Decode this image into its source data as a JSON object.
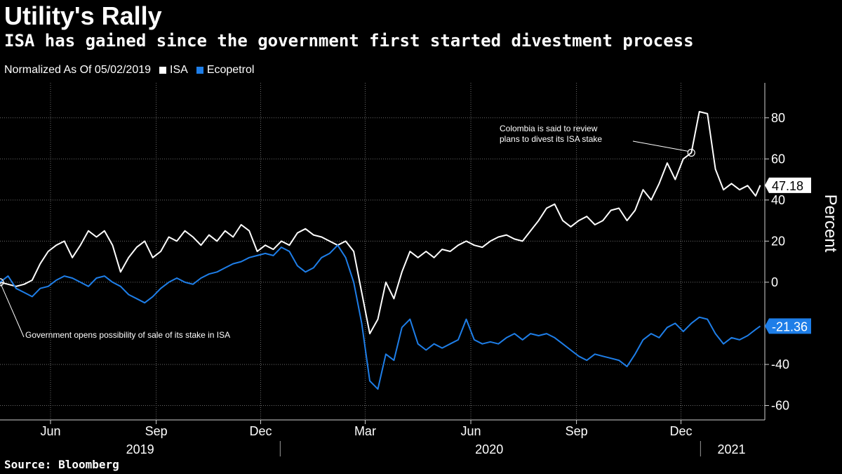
{
  "header": {
    "title": "Utility's Rally",
    "subtitle": "ISA has gained since the government first started divestment process"
  },
  "legend": {
    "note": "Normalized As Of 05/02/2019",
    "items": [
      {
        "label": "ISA",
        "color": "#ffffff"
      },
      {
        "label": "Ecopetrol",
        "color": "#1e7ee8"
      }
    ]
  },
  "footer": {
    "source": "Source: Bloomberg"
  },
  "chart_data": {
    "type": "line",
    "ylabel": "Percent",
    "ylim": [
      -67,
      97
    ],
    "yticks": [
      80,
      60,
      40,
      20,
      0,
      -40,
      -60
    ],
    "x_start": "2019-05-02",
    "x_end": "2021-02-26",
    "month_ticks": [
      {
        "label": "Jun",
        "date": "2019-06-15"
      },
      {
        "label": "Sep",
        "date": "2019-09-15"
      },
      {
        "label": "Dec",
        "date": "2019-12-15"
      },
      {
        "label": "Mar",
        "date": "2020-03-15"
      },
      {
        "label": "Jun",
        "date": "2020-06-15"
      },
      {
        "label": "Sep",
        "date": "2020-09-15"
      },
      {
        "label": "Dec",
        "date": "2020-12-15"
      }
    ],
    "year_labels": [
      {
        "label": "2019",
        "date": "2019-09-01"
      },
      {
        "label": "2020",
        "date": "2020-07-01"
      },
      {
        "label": "2021",
        "date": "2021-01-28"
      }
    ],
    "year_dividers": [
      "2020-01-01",
      "2021-01-01"
    ],
    "series": [
      {
        "name": "ISA",
        "color": "#ffffff",
        "last_value_label": "47.18",
        "points": [
          [
            "2019-05-02",
            0
          ],
          [
            "2019-05-09",
            -1
          ],
          [
            "2019-05-16",
            -2
          ],
          [
            "2019-05-23",
            -1
          ],
          [
            "2019-05-30",
            1
          ],
          [
            "2019-06-06",
            9
          ],
          [
            "2019-06-13",
            15
          ],
          [
            "2019-06-20",
            18
          ],
          [
            "2019-06-27",
            20
          ],
          [
            "2019-07-04",
            12
          ],
          [
            "2019-07-11",
            18
          ],
          [
            "2019-07-18",
            25
          ],
          [
            "2019-07-25",
            22
          ],
          [
            "2019-08-01",
            25
          ],
          [
            "2019-08-08",
            18
          ],
          [
            "2019-08-15",
            5
          ],
          [
            "2019-08-22",
            12
          ],
          [
            "2019-08-29",
            17
          ],
          [
            "2019-09-05",
            20
          ],
          [
            "2019-09-12",
            12
          ],
          [
            "2019-09-19",
            15
          ],
          [
            "2019-09-26",
            22
          ],
          [
            "2019-10-03",
            20
          ],
          [
            "2019-10-10",
            25
          ],
          [
            "2019-10-17",
            22
          ],
          [
            "2019-10-24",
            18
          ],
          [
            "2019-10-31",
            23
          ],
          [
            "2019-11-07",
            20
          ],
          [
            "2019-11-14",
            25
          ],
          [
            "2019-11-21",
            22
          ],
          [
            "2019-11-28",
            28
          ],
          [
            "2019-12-05",
            25
          ],
          [
            "2019-12-12",
            15
          ],
          [
            "2019-12-19",
            18
          ],
          [
            "2019-12-26",
            16
          ],
          [
            "2020-01-02",
            20
          ],
          [
            "2020-01-09",
            18
          ],
          [
            "2020-01-16",
            24
          ],
          [
            "2020-01-23",
            26
          ],
          [
            "2020-01-30",
            23
          ],
          [
            "2020-02-06",
            22
          ],
          [
            "2020-02-13",
            20
          ],
          [
            "2020-02-20",
            18
          ],
          [
            "2020-02-27",
            20
          ],
          [
            "2020-03-05",
            15
          ],
          [
            "2020-03-12",
            -5
          ],
          [
            "2020-03-19",
            -25
          ],
          [
            "2020-03-26",
            -18
          ],
          [
            "2020-04-02",
            0
          ],
          [
            "2020-04-09",
            -8
          ],
          [
            "2020-04-16",
            5
          ],
          [
            "2020-04-23",
            15
          ],
          [
            "2020-04-30",
            12
          ],
          [
            "2020-05-07",
            15
          ],
          [
            "2020-05-14",
            12
          ],
          [
            "2020-05-21",
            16
          ],
          [
            "2020-05-28",
            15
          ],
          [
            "2020-06-04",
            18
          ],
          [
            "2020-06-11",
            20
          ],
          [
            "2020-06-18",
            18
          ],
          [
            "2020-06-25",
            17
          ],
          [
            "2020-07-02",
            20
          ],
          [
            "2020-07-09",
            22
          ],
          [
            "2020-07-16",
            23
          ],
          [
            "2020-07-23",
            21
          ],
          [
            "2020-07-30",
            20
          ],
          [
            "2020-08-06",
            25
          ],
          [
            "2020-08-13",
            30
          ],
          [
            "2020-08-20",
            36
          ],
          [
            "2020-08-27",
            38
          ],
          [
            "2020-09-03",
            30
          ],
          [
            "2020-09-10",
            27
          ],
          [
            "2020-09-17",
            30
          ],
          [
            "2020-09-24",
            32
          ],
          [
            "2020-10-01",
            28
          ],
          [
            "2020-10-08",
            30
          ],
          [
            "2020-10-15",
            35
          ],
          [
            "2020-10-22",
            36
          ],
          [
            "2020-10-29",
            30
          ],
          [
            "2020-11-05",
            35
          ],
          [
            "2020-11-12",
            45
          ],
          [
            "2020-11-19",
            40
          ],
          [
            "2020-11-26",
            48
          ],
          [
            "2020-12-03",
            58
          ],
          [
            "2020-12-10",
            50
          ],
          [
            "2020-12-17",
            60
          ],
          [
            "2020-12-24",
            63
          ],
          [
            "2020-12-31",
            83
          ],
          [
            "2021-01-07",
            82
          ],
          [
            "2021-01-14",
            55
          ],
          [
            "2021-01-21",
            45
          ],
          [
            "2021-01-28",
            48
          ],
          [
            "2021-02-04",
            45
          ],
          [
            "2021-02-11",
            47
          ],
          [
            "2021-02-18",
            42
          ],
          [
            "2021-02-22",
            47.18
          ]
        ]
      },
      {
        "name": "Ecopetrol",
        "color": "#1e7ee8",
        "last_value_label": "-21.36",
        "points": [
          [
            "2019-05-02",
            0
          ],
          [
            "2019-05-09",
            3
          ],
          [
            "2019-05-16",
            -3
          ],
          [
            "2019-05-23",
            -5
          ],
          [
            "2019-05-30",
            -7
          ],
          [
            "2019-06-06",
            -3
          ],
          [
            "2019-06-13",
            -2
          ],
          [
            "2019-06-20",
            1
          ],
          [
            "2019-06-27",
            3
          ],
          [
            "2019-07-04",
            2
          ],
          [
            "2019-07-11",
            0
          ],
          [
            "2019-07-18",
            -2
          ],
          [
            "2019-07-25",
            2
          ],
          [
            "2019-08-01",
            3
          ],
          [
            "2019-08-08",
            0
          ],
          [
            "2019-08-15",
            -2
          ],
          [
            "2019-08-22",
            -6
          ],
          [
            "2019-08-29",
            -8
          ],
          [
            "2019-09-05",
            -10
          ],
          [
            "2019-09-12",
            -7
          ],
          [
            "2019-09-19",
            -3
          ],
          [
            "2019-09-26",
            0
          ],
          [
            "2019-10-03",
            2
          ],
          [
            "2019-10-10",
            0
          ],
          [
            "2019-10-17",
            -1
          ],
          [
            "2019-10-24",
            2
          ],
          [
            "2019-10-31",
            4
          ],
          [
            "2019-11-07",
            5
          ],
          [
            "2019-11-14",
            7
          ],
          [
            "2019-11-21",
            9
          ],
          [
            "2019-11-28",
            10
          ],
          [
            "2019-12-05",
            12
          ],
          [
            "2019-12-12",
            13
          ],
          [
            "2019-12-19",
            14
          ],
          [
            "2019-12-26",
            13
          ],
          [
            "2020-01-02",
            17
          ],
          [
            "2020-01-09",
            15
          ],
          [
            "2020-01-16",
            8
          ],
          [
            "2020-01-23",
            5
          ],
          [
            "2020-01-30",
            7
          ],
          [
            "2020-02-06",
            12
          ],
          [
            "2020-02-13",
            14
          ],
          [
            "2020-02-20",
            18
          ],
          [
            "2020-02-27",
            12
          ],
          [
            "2020-03-05",
            0
          ],
          [
            "2020-03-12",
            -20
          ],
          [
            "2020-03-19",
            -48
          ],
          [
            "2020-03-26",
            -52
          ],
          [
            "2020-04-02",
            -35
          ],
          [
            "2020-04-09",
            -38
          ],
          [
            "2020-04-16",
            -22
          ],
          [
            "2020-04-23",
            -18
          ],
          [
            "2020-04-30",
            -30
          ],
          [
            "2020-05-07",
            -33
          ],
          [
            "2020-05-14",
            -30
          ],
          [
            "2020-05-21",
            -32
          ],
          [
            "2020-05-28",
            -30
          ],
          [
            "2020-06-04",
            -28
          ],
          [
            "2020-06-11",
            -18
          ],
          [
            "2020-06-18",
            -28
          ],
          [
            "2020-06-25",
            -30
          ],
          [
            "2020-07-02",
            -29
          ],
          [
            "2020-07-09",
            -30
          ],
          [
            "2020-07-16",
            -27
          ],
          [
            "2020-07-23",
            -25
          ],
          [
            "2020-07-30",
            -28
          ],
          [
            "2020-08-06",
            -25
          ],
          [
            "2020-08-13",
            -26
          ],
          [
            "2020-08-20",
            -25
          ],
          [
            "2020-08-27",
            -27
          ],
          [
            "2020-09-03",
            -30
          ],
          [
            "2020-09-10",
            -33
          ],
          [
            "2020-09-17",
            -36
          ],
          [
            "2020-09-24",
            -38
          ],
          [
            "2020-10-01",
            -35
          ],
          [
            "2020-10-08",
            -36
          ],
          [
            "2020-10-15",
            -37
          ],
          [
            "2020-10-22",
            -38
          ],
          [
            "2020-10-29",
            -41
          ],
          [
            "2020-11-05",
            -35
          ],
          [
            "2020-11-12",
            -28
          ],
          [
            "2020-11-19",
            -25
          ],
          [
            "2020-11-26",
            -27
          ],
          [
            "2020-12-03",
            -22
          ],
          [
            "2020-12-10",
            -20
          ],
          [
            "2020-12-17",
            -24
          ],
          [
            "2020-12-24",
            -20
          ],
          [
            "2020-12-31",
            -17
          ],
          [
            "2021-01-07",
            -18
          ],
          [
            "2021-01-14",
            -25
          ],
          [
            "2021-01-21",
            -30
          ],
          [
            "2021-01-28",
            -27
          ],
          [
            "2021-02-04",
            -28
          ],
          [
            "2021-02-11",
            -26
          ],
          [
            "2021-02-18",
            -23
          ],
          [
            "2021-02-22",
            -21.36
          ]
        ]
      }
    ],
    "annotations": [
      {
        "text": "Government opens possibility of sale of its stake in ISA",
        "target_date": "2019-05-02",
        "target_value": 0
      },
      {
        "text": "Colombia is said to review plans to divest its ISA stake",
        "target_date": "2020-12-24",
        "target_value": 63
      }
    ]
  }
}
